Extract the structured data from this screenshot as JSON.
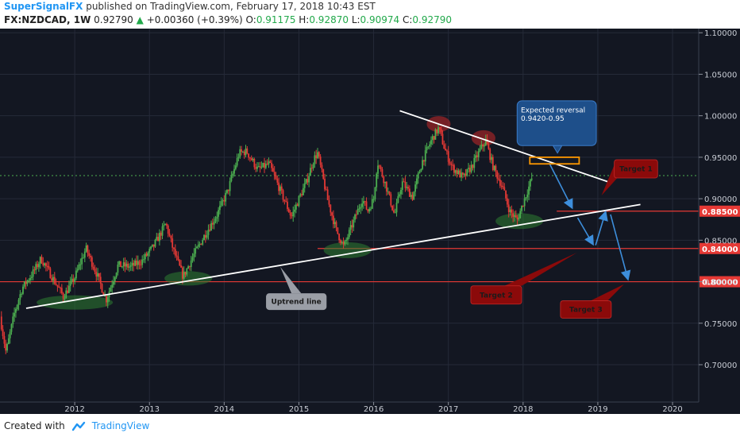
{
  "header": {
    "author": "SuperSignalFX",
    "published_text": " published on TradingView.com, February 17, 2018 10:43 EST",
    "symbol": "FX:NZDCAD, 1W",
    "last": "0.92790",
    "change_icon": "triangle-up-icon",
    "change": "+0.00360 (+0.39%)",
    "o_label": "O:",
    "o": "0.91175",
    "h_label": "H:",
    "h": "0.92870",
    "l_label": "L:",
    "l": "0.90974",
    "c_label": "C:",
    "c": "0.92790"
  },
  "footer": {
    "created_with": "Created with",
    "brand": "TradingView",
    "brand_icon": "tradingview-cloud-icon"
  },
  "colors": {
    "background": "#131722",
    "up_candle": "#4caf50",
    "down_candle": "#e53935",
    "trendline": "#ffffff",
    "level_line": "#e53935",
    "current_line": "#4caf50",
    "arrow": "#3d8edb",
    "target_box": "#8b0a0a",
    "reversal_box": "#1e4f8a",
    "reversal_zone": "#ff9800",
    "price_tag": "#e53935"
  },
  "chart_data": {
    "type": "candlestick",
    "timeframe": "1W",
    "x_ticks": [
      "2012",
      "2013",
      "2014",
      "2015",
      "2016",
      "2017",
      "2018",
      "2019",
      "2020"
    ],
    "y_ticks": [
      "1.10000",
      "1.05000",
      "1.00000",
      "0.95000",
      "0.90000",
      "0.85000",
      "0.80000",
      "0.75000",
      "0.70000"
    ],
    "ylim": [
      0.655,
      1.105
    ],
    "xlim": [
      2011.0,
      2020.35
    ],
    "grid": true,
    "close_path": [
      [
        2011.0,
        0.758
      ],
      [
        2011.08,
        0.715
      ],
      [
        2011.2,
        0.765
      ],
      [
        2011.3,
        0.793
      ],
      [
        2011.45,
        0.812
      ],
      [
        2011.55,
        0.828
      ],
      [
        2011.7,
        0.805
      ],
      [
        2011.85,
        0.782
      ],
      [
        2012.0,
        0.805
      ],
      [
        2012.15,
        0.84
      ],
      [
        2012.3,
        0.808
      ],
      [
        2012.42,
        0.778
      ],
      [
        2012.58,
        0.82
      ],
      [
        2012.75,
        0.818
      ],
      [
        2012.9,
        0.825
      ],
      [
        2013.05,
        0.842
      ],
      [
        2013.22,
        0.87
      ],
      [
        2013.32,
        0.838
      ],
      [
        2013.45,
        0.806
      ],
      [
        2013.58,
        0.83
      ],
      [
        2013.75,
        0.858
      ],
      [
        2013.9,
        0.88
      ],
      [
        2014.05,
        0.91
      ],
      [
        2014.2,
        0.955
      ],
      [
        2014.3,
        0.957
      ],
      [
        2014.45,
        0.935
      ],
      [
        2014.6,
        0.942
      ],
      [
        2014.75,
        0.91
      ],
      [
        2014.9,
        0.878
      ],
      [
        2015.0,
        0.9
      ],
      [
        2015.1,
        0.92
      ],
      [
        2015.2,
        0.948
      ],
      [
        2015.25,
        0.955
      ],
      [
        2015.38,
        0.9
      ],
      [
        2015.5,
        0.862
      ],
      [
        2015.6,
        0.842
      ],
      [
        2015.72,
        0.87
      ],
      [
        2015.85,
        0.9
      ],
      [
        2015.92,
        0.885
      ],
      [
        2016.0,
        0.9
      ],
      [
        2016.05,
        0.945
      ],
      [
        2016.15,
        0.92
      ],
      [
        2016.28,
        0.88
      ],
      [
        2016.38,
        0.92
      ],
      [
        2016.52,
        0.902
      ],
      [
        2016.65,
        0.945
      ],
      [
        2016.78,
        0.972
      ],
      [
        2016.87,
        0.985
      ],
      [
        2016.95,
        0.96
      ],
      [
        2017.05,
        0.938
      ],
      [
        2017.2,
        0.925
      ],
      [
        2017.32,
        0.94
      ],
      [
        2017.42,
        0.958
      ],
      [
        2017.5,
        0.97
      ],
      [
        2017.6,
        0.938
      ],
      [
        2017.72,
        0.915
      ],
      [
        2017.82,
        0.885
      ],
      [
        2017.92,
        0.874
      ],
      [
        2018.0,
        0.895
      ],
      [
        2018.08,
        0.915
      ],
      [
        2018.13,
        0.928
      ]
    ],
    "current_price": 0.9279,
    "price_levels": [
      {
        "label": "0.88500",
        "value": 0.885
      },
      {
        "label": "0.84000",
        "value": 0.84
      },
      {
        "label": "0.80000",
        "value": 0.8
      }
    ],
    "annotations": {
      "uptrend_label": "Uptrend line",
      "reversal_title": "Expected reversal",
      "reversal_range": "0.9420-0.95",
      "target1": "Target 1",
      "target2": "Target 2",
      "target3": "Target 3"
    }
  }
}
